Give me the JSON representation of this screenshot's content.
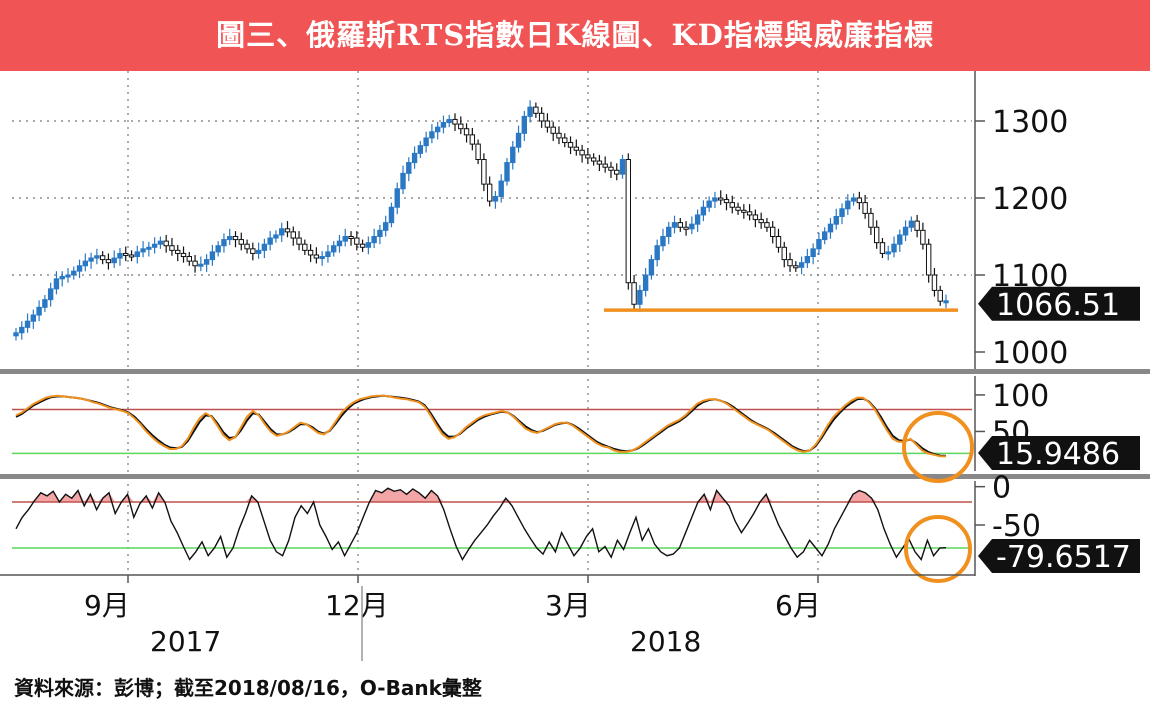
{
  "title": "圖三、俄羅斯RTS指數日K線圖、KD指標與威廉指標",
  "source": "資料來源：彭博；截至2018/08/16，O-Bank彙整",
  "colors": {
    "title_bg": "#f05454",
    "up_candle": "#2a78c4",
    "down_candle": "#111111",
    "support_line": "#f0901e",
    "k_line": "#f0901e",
    "d_line": "#111111",
    "overbought_line": "#c0504d",
    "oversold_line": "#5cd65c",
    "overbought_fill": "#f4a6a6",
    "highlight_circle": "#f0901e",
    "label_box": "#111111",
    "separator": "#888888"
  },
  "chart_data": [
    {
      "type": "candlestick",
      "panel": "price",
      "ylim": [
        950,
        1350
      ],
      "yticks": [
        "1300",
        "1200",
        "1100",
        "1000"
      ],
      "last_value_label": "1066.51",
      "support_line_level": 1070,
      "closes": [
        1025,
        1032,
        1040,
        1048,
        1058,
        1068,
        1082,
        1095,
        1098,
        1100,
        1105,
        1112,
        1118,
        1122,
        1125,
        1120,
        1116,
        1122,
        1128,
        1126,
        1124,
        1130,
        1134,
        1136,
        1140,
        1144,
        1138,
        1132,
        1128,
        1124,
        1118,
        1112,
        1114,
        1120,
        1130,
        1138,
        1146,
        1150,
        1146,
        1140,
        1134,
        1128,
        1132,
        1140,
        1148,
        1152,
        1160,
        1156,
        1148,
        1140,
        1132,
        1126,
        1122,
        1124,
        1130,
        1138,
        1144,
        1150,
        1148,
        1140,
        1136,
        1142,
        1150,
        1158,
        1168,
        1188,
        1212,
        1232,
        1246,
        1258,
        1268,
        1278,
        1286,
        1292,
        1298,
        1302,
        1296,
        1290,
        1282,
        1270,
        1250,
        1218,
        1196,
        1202,
        1222,
        1246,
        1266,
        1284,
        1306,
        1318,
        1310,
        1300,
        1292,
        1284,
        1278,
        1272,
        1266,
        1262,
        1256,
        1252,
        1248,
        1244,
        1240,
        1236,
        1231,
        1250,
        1090,
        1062,
        1080,
        1100,
        1120,
        1138,
        1150,
        1162,
        1168,
        1162,
        1160,
        1166,
        1178,
        1188,
        1196,
        1200,
        1198,
        1194,
        1188,
        1184,
        1182,
        1178,
        1172,
        1168,
        1162,
        1150,
        1136,
        1120,
        1112,
        1110,
        1116,
        1124,
        1134,
        1146,
        1156,
        1166,
        1176,
        1186,
        1196,
        1200,
        1194,
        1180,
        1162,
        1142,
        1128,
        1130,
        1140,
        1152,
        1162,
        1170,
        1158,
        1140,
        1100,
        1080,
        1066,
        1066.51
      ],
      "x_tick_labels": [
        "9月",
        "12月",
        "3月",
        "6月"
      ],
      "year_labels": [
        "2017",
        "2018"
      ]
    },
    {
      "type": "line",
      "panel": "kd",
      "ylim": [
        0,
        130
      ],
      "yticks": [
        "100",
        "50"
      ],
      "overbought": 80,
      "oversold": 20,
      "last_value_label": "15.9486",
      "series": [
        {
          "values": [
            72,
            76,
            82,
            88,
            92,
            96,
            98,
            99,
            98,
            97,
            96,
            95,
            93,
            90,
            88,
            85,
            82,
            80,
            78,
            75,
            68,
            60,
            50,
            42,
            35,
            30,
            26,
            26,
            30,
            40,
            55,
            68,
            75,
            70,
            58,
            45,
            38,
            42,
            56,
            70,
            78,
            72,
            60,
            50,
            44,
            46,
            50,
            56,
            62,
            60,
            54,
            48,
            46,
            52,
            64,
            76,
            84,
            90,
            94,
            96,
            98,
            99,
            99,
            98,
            96,
            95,
            94,
            92,
            90,
            84,
            72,
            58,
            46,
            40,
            42,
            48,
            56,
            62,
            68,
            72,
            74,
            76,
            78,
            76,
            70,
            62,
            54,
            50,
            48,
            52,
            56,
            60,
            62,
            62,
            58,
            52,
            46,
            40,
            34,
            30,
            28,
            24,
            22,
            22,
            24,
            28,
            34,
            40,
            46,
            52,
            58,
            62,
            66,
            72,
            80,
            88,
            92,
            94,
            94,
            92,
            88,
            82,
            76,
            70,
            64,
            60,
            56,
            52,
            46,
            40,
            34,
            28,
            24,
            22,
            24,
            32,
            44,
            58,
            70,
            78,
            86,
            92,
            96,
            96,
            90,
            80,
            66,
            52,
            40,
            36,
            36,
            40,
            32,
            24,
            20,
            18,
            16,
            15.9
          ]
        },
        {
          "values": [
            70,
            74,
            80,
            86,
            90,
            94,
            97,
            98,
            98,
            97,
            96,
            95,
            93,
            91,
            89,
            86,
            83,
            81,
            79,
            76,
            70,
            62,
            53,
            45,
            38,
            32,
            28,
            27,
            29,
            37,
            50,
            63,
            72,
            71,
            61,
            49,
            41,
            42,
            52,
            65,
            75,
            73,
            63,
            53,
            46,
            46,
            49,
            54,
            60,
            60,
            56,
            50,
            47,
            51,
            61,
            72,
            81,
            88,
            92,
            95,
            97,
            98,
            99,
            98,
            97,
            96,
            95,
            93,
            91,
            86,
            75,
            62,
            50,
            43,
            43,
            47,
            54,
            60,
            66,
            70,
            73,
            75,
            77,
            76,
            71,
            64,
            57,
            52,
            49,
            51,
            55,
            59,
            61,
            62,
            59,
            54,
            48,
            42,
            36,
            32,
            29,
            26,
            24,
            23,
            24,
            27,
            32,
            38,
            44,
            50,
            56,
            60,
            64,
            70,
            77,
            85,
            90,
            93,
            94,
            92,
            89,
            84,
            78,
            72,
            66,
            61,
            57,
            53,
            48,
            42,
            36,
            30,
            26,
            23,
            24,
            30,
            41,
            54,
            66,
            75,
            83,
            89,
            94,
            95,
            91,
            82,
            70,
            56,
            44,
            38,
            37,
            39,
            34,
            27,
            22,
            19,
            17,
            16.5
          ]
        }
      ]
    },
    {
      "type": "line",
      "panel": "williams_r",
      "ylim": [
        -110,
        10
      ],
      "yticks": [
        "0",
        "-50"
      ],
      "overbought": -20,
      "oversold": -80,
      "last_value_label": "-79.6517",
      "series": [
        {
          "values": [
            -55,
            -40,
            -30,
            -18,
            -8,
            -12,
            -6,
            -20,
            -10,
            -15,
            -5,
            -25,
            -10,
            -30,
            -15,
            -8,
            -35,
            -20,
            -10,
            -40,
            -22,
            -12,
            -28,
            -8,
            -20,
            -45,
            -60,
            -78,
            -95,
            -85,
            -72,
            -90,
            -80,
            -65,
            -92,
            -80,
            -55,
            -35,
            -12,
            -20,
            -45,
            -70,
            -85,
            -90,
            -70,
            -40,
            -25,
            -35,
            -20,
            -50,
            -65,
            -82,
            -72,
            -90,
            -75,
            -60,
            -40,
            -20,
            -5,
            -8,
            -2,
            -6,
            -4,
            -10,
            -3,
            -8,
            -15,
            -5,
            -12,
            -30,
            -55,
            -78,
            -95,
            -82,
            -70,
            -60,
            -50,
            -38,
            -28,
            -15,
            -25,
            -40,
            -55,
            -68,
            -80,
            -88,
            -72,
            -85,
            -60,
            -75,
            -90,
            -80,
            -65,
            -55,
            -85,
            -78,
            -92,
            -70,
            -82,
            -60,
            -40,
            -70,
            -55,
            -75,
            -85,
            -90,
            -88,
            -80,
            -60,
            -40,
            -20,
            -10,
            -30,
            -5,
            -15,
            -25,
            -45,
            -60,
            -48,
            -35,
            -20,
            -10,
            -30,
            -50,
            -65,
            -80,
            -92,
            -85,
            -70,
            -80,
            -90,
            -75,
            -55,
            -40,
            -25,
            -10,
            -5,
            -8,
            -15,
            -30,
            -55,
            -75,
            -92,
            -80,
            -68,
            -85,
            -95,
            -70,
            -90,
            -80,
            -79.65
          ]
        }
      ]
    }
  ]
}
